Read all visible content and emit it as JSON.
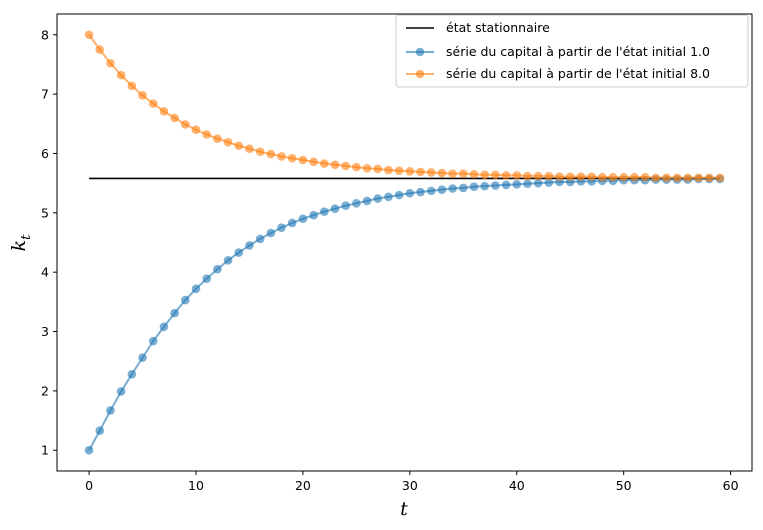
{
  "chart_data": {
    "type": "line",
    "xlabel": "t",
    "ylabel_main": "k",
    "ylabel_sub": "t",
    "xlim": [
      -3,
      62
    ],
    "ylim": [
      0.65,
      8.35
    ],
    "x_ticks": [
      0,
      10,
      20,
      30,
      40,
      50,
      60
    ],
    "y_ticks": [
      1,
      2,
      3,
      4,
      5,
      6,
      7,
      8
    ],
    "grid": false,
    "legend_position": "top-right",
    "steady_state": {
      "name": "état stationnaire",
      "value": 5.58,
      "x_range": [
        0,
        59
      ],
      "color": "#000000"
    },
    "series": [
      {
        "name": "série du capital à partir de l'état initial 1.0",
        "color": "#1f77b4",
        "x": [
          0,
          1,
          2,
          3,
          4,
          5,
          6,
          7,
          8,
          9,
          10,
          11,
          12,
          13,
          14,
          15,
          16,
          17,
          18,
          19,
          20,
          21,
          22,
          23,
          24,
          25,
          26,
          27,
          28,
          29,
          30,
          31,
          32,
          33,
          34,
          35,
          36,
          37,
          38,
          39,
          40,
          41,
          42,
          43,
          44,
          45,
          46,
          47,
          48,
          49,
          50,
          51,
          52,
          53,
          54,
          55,
          56,
          57,
          58,
          59
        ],
        "values": [
          1.0,
          1.33,
          1.67,
          1.99,
          2.28,
          2.56,
          2.84,
          3.08,
          3.31,
          3.53,
          3.72,
          3.89,
          4.05,
          4.2,
          4.33,
          4.45,
          4.56,
          4.66,
          4.75,
          4.83,
          4.9,
          4.96,
          5.02,
          5.07,
          5.12,
          5.16,
          5.2,
          5.24,
          5.27,
          5.3,
          5.33,
          5.35,
          5.37,
          5.39,
          5.41,
          5.42,
          5.44,
          5.45,
          5.46,
          5.47,
          5.48,
          5.49,
          5.5,
          5.51,
          5.52,
          5.52,
          5.53,
          5.53,
          5.54,
          5.54,
          5.55,
          5.55,
          5.55,
          5.56,
          5.56,
          5.56,
          5.56,
          5.57,
          5.57,
          5.57
        ]
      },
      {
        "name": "série du capital à partir de l'état initial 8.0",
        "color": "#ff7f0e",
        "x": [
          0,
          1,
          2,
          3,
          4,
          5,
          6,
          7,
          8,
          9,
          10,
          11,
          12,
          13,
          14,
          15,
          16,
          17,
          18,
          19,
          20,
          21,
          22,
          23,
          24,
          25,
          26,
          27,
          28,
          29,
          30,
          31,
          32,
          33,
          34,
          35,
          36,
          37,
          38,
          39,
          40,
          41,
          42,
          43,
          44,
          45,
          46,
          47,
          48,
          49,
          50,
          51,
          52,
          53,
          54,
          55,
          56,
          57,
          58,
          59
        ],
        "values": [
          8.0,
          7.75,
          7.52,
          7.32,
          7.14,
          6.98,
          6.84,
          6.71,
          6.6,
          6.49,
          6.4,
          6.32,
          6.25,
          6.19,
          6.13,
          6.08,
          6.03,
          5.99,
          5.95,
          5.92,
          5.89,
          5.86,
          5.83,
          5.81,
          5.79,
          5.77,
          5.75,
          5.74,
          5.72,
          5.71,
          5.7,
          5.69,
          5.68,
          5.67,
          5.66,
          5.66,
          5.65,
          5.64,
          5.64,
          5.63,
          5.63,
          5.62,
          5.62,
          5.62,
          5.61,
          5.61,
          5.61,
          5.61,
          5.6,
          5.6,
          5.6,
          5.6,
          5.6,
          5.59,
          5.59,
          5.59,
          5.59,
          5.59,
          5.59,
          5.59
        ]
      }
    ]
  }
}
